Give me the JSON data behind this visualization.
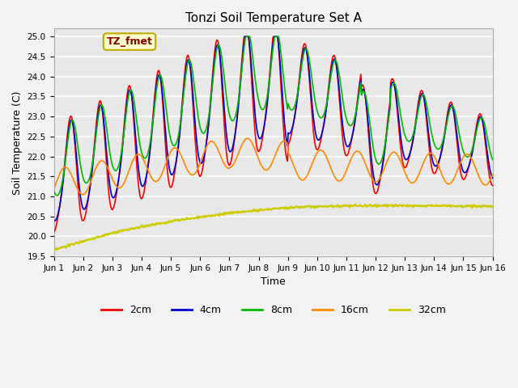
{
  "title": "Tonzi Soil Temperature Set A",
  "xlabel": "Time",
  "ylabel": "Soil Temperature (C)",
  "ylim": [
    19.5,
    25.2
  ],
  "xlim": [
    0,
    15
  ],
  "xtick_labels": [
    "Jun 1",
    "Jun 2",
    "Jun 3",
    "Jun 4",
    "Jun 5",
    "Jun 6",
    "Jun 7",
    "Jun 8",
    "Jun 9",
    "Jun 10",
    "Jun 11",
    "Jun 12",
    "Jun 13",
    "Jun 14",
    "Jun 15",
    "Jun 16"
  ],
  "ytick_vals": [
    19.5,
    20.0,
    20.5,
    21.0,
    21.5,
    22.0,
    22.5,
    23.0,
    23.5,
    24.0,
    24.5,
    25.0
  ],
  "colors": {
    "2cm": "#FF0000",
    "4cm": "#0000CC",
    "8cm": "#00BB00",
    "16cm": "#FF8800",
    "32cm": "#CCCC00"
  },
  "annotation_text": "TZ_fmet",
  "bg_color": "#E8E8E8",
  "fig_bg_color": "#F2F2F2",
  "legend_entries": [
    "2cm",
    "4cm",
    "8cm",
    "16cm",
    "32cm"
  ]
}
